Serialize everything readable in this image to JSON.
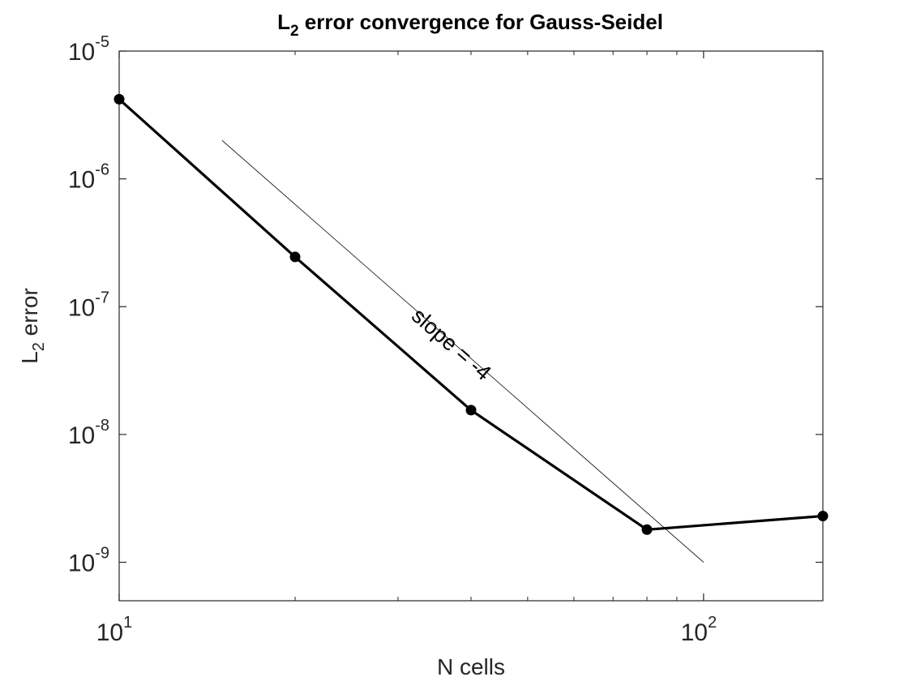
{
  "chart_data": {
    "type": "line",
    "title": "L2 error convergence for Gauss-Seidel",
    "title_parts": {
      "prefix": "L",
      "sub": "2",
      "rest": " error convergence for Gauss-Seidel"
    },
    "xlabel": "N cells",
    "ylabel": "L2 error",
    "ylabel_parts": {
      "prefix": "L",
      "sub": "2",
      "rest": " error"
    },
    "xscale": "log",
    "yscale": "log",
    "xlim": [
      10,
      160
    ],
    "ylim": [
      5e-10,
      1e-05
    ],
    "grid": false,
    "x_ticks": [
      {
        "value": 10,
        "base": "10",
        "exp": "1"
      },
      {
        "value": 100,
        "base": "10",
        "exp": "2"
      }
    ],
    "y_ticks": [
      {
        "value": 1e-09,
        "base": "10",
        "exp": "-9"
      },
      {
        "value": 1e-08,
        "base": "10",
        "exp": "-8"
      },
      {
        "value": 1e-07,
        "base": "10",
        "exp": "-7"
      },
      {
        "value": 1e-06,
        "base": "10",
        "exp": "-6"
      },
      {
        "value": 1e-05,
        "base": "10",
        "exp": "-5"
      }
    ],
    "series": [
      {
        "color": "#000000",
        "marker": "circle",
        "x": [
          10,
          20,
          40,
          80,
          160
        ],
        "y": [
          4.2e-06,
          2.45e-07,
          1.55e-08,
          1.8e-09,
          2.3e-09
        ]
      }
    ],
    "reference_line": {
      "color": "#000000",
      "x": [
        15,
        100
      ],
      "y": [
        2e-06,
        1e-09
      ],
      "label": "slope = -4"
    }
  }
}
